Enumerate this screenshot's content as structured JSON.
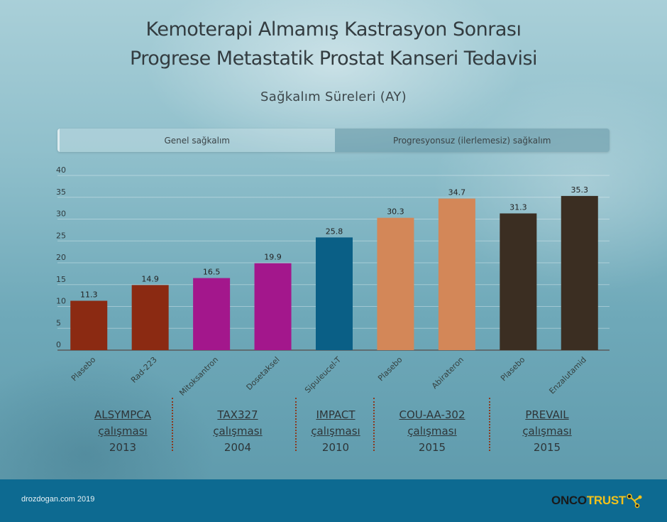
{
  "header": {
    "title_line1": "Kemoterapi Almamış Kastrasyon Sonrası",
    "title_line2": "Progrese Metastatik Prostat Kanseri Tedavisi",
    "subtitle": "Sağkalım Süreleri (AY)"
  },
  "tabs": [
    {
      "label": "Genel sağkalım",
      "active": true
    },
    {
      "label": "Progresyonsuz (ilerlemesiz) sağkalım",
      "active": false
    }
  ],
  "chart_data": {
    "type": "bar",
    "categories": [
      "Plasebo",
      "Rad-223",
      "Mitoksantron",
      "Dosetaksel",
      "Sipuleucel-T",
      "Plasebo",
      "Abirateron",
      "Plasebo",
      "Enzalutamid"
    ],
    "values": [
      11.3,
      14.9,
      16.5,
      19.9,
      25.8,
      30.3,
      34.7,
      31.3,
      35.3
    ],
    "value_labels": [
      "11.3",
      "14.9",
      "16.5",
      "19.9",
      "25.8",
      "30.3",
      "34.7",
      "31.3",
      "35.3"
    ],
    "colors": [
      "#8b2a12",
      "#8b2a12",
      "#a3178c",
      "#a3178c",
      "#0a5f86",
      "#d38758",
      "#d38758",
      "#3b2e22",
      "#3b2e22"
    ],
    "ylim": [
      0,
      40
    ],
    "yticks": [
      "0",
      "5",
      "10",
      "15",
      "20",
      "25",
      "30",
      "35",
      "40"
    ],
    "grid": true,
    "title": "",
    "xlabel": "",
    "ylabel": ""
  },
  "studies": [
    {
      "name": "ALSYMPCA",
      "sub": "çalışması",
      "year": "2013"
    },
    {
      "name": "TAX327",
      "sub": "çalışması",
      "year": "2004"
    },
    {
      "name": "IMPACT",
      "sub": "çalışması",
      "year": "2010"
    },
    {
      "name": "COU-AA-302",
      "sub": "çalışması",
      "year": "2015"
    },
    {
      "name": "PREVAIL",
      "sub": "çalışması",
      "year": "2015"
    }
  ],
  "footer": {
    "credit": "drozdogan.com 2019",
    "logo_part1": "ONCO",
    "logo_part2": "TRUST"
  }
}
